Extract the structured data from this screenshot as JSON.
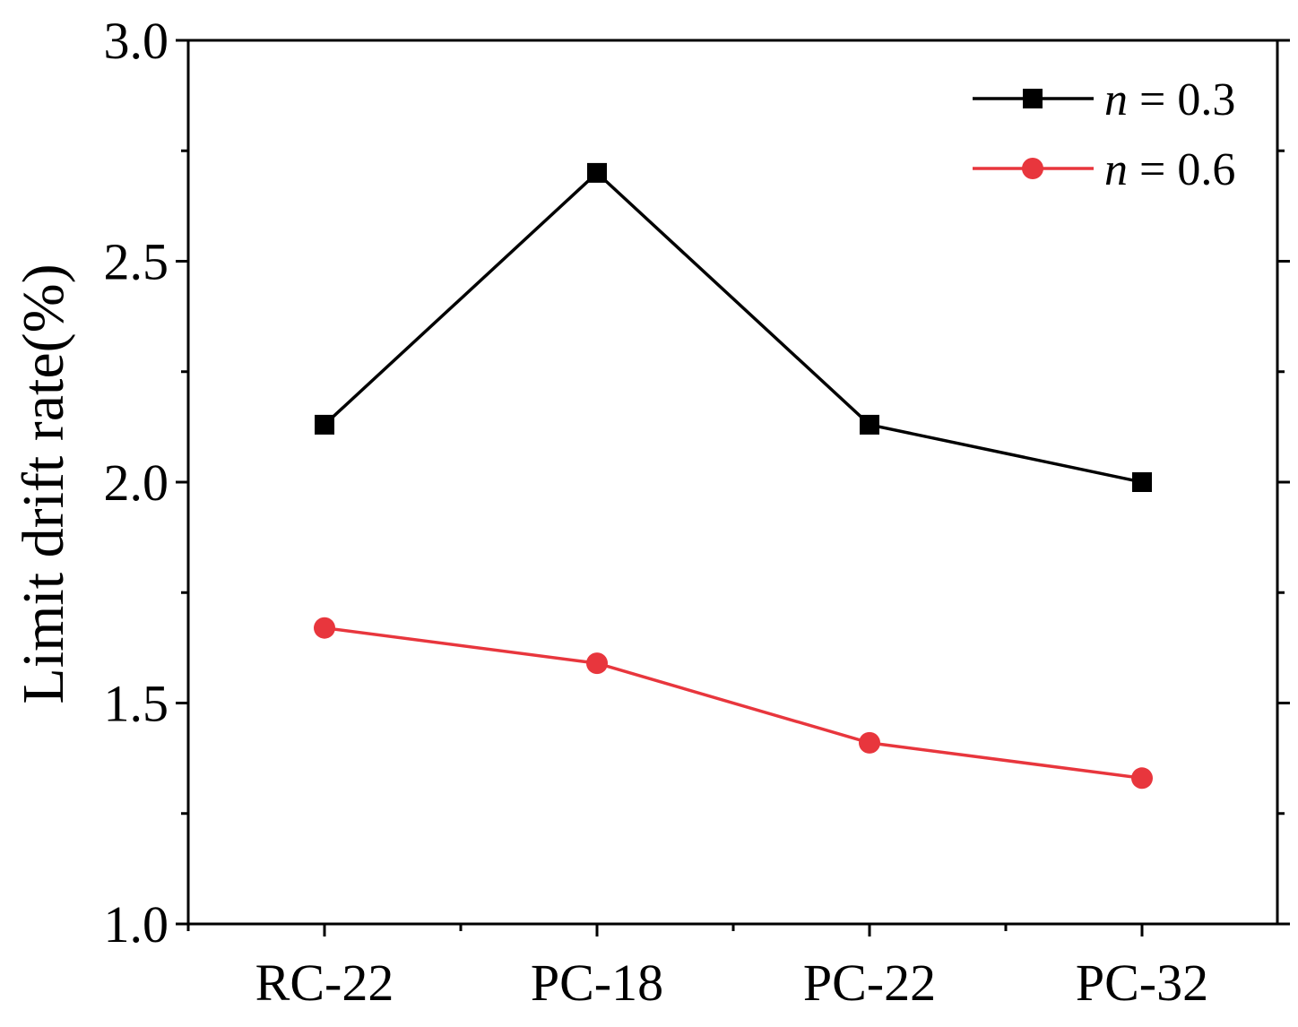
{
  "chart_data": {
    "type": "line",
    "title": "",
    "xlabel": "",
    "ylabel": "Limit drift rate(%)",
    "categories": [
      "RC-22",
      "PC-18",
      "PC-22",
      "PC-32"
    ],
    "ylim": [
      1.0,
      3.0
    ],
    "yticks": [
      1.0,
      1.5,
      2.0,
      2.5,
      3.0
    ],
    "ytick_labels": [
      "1.0",
      "1.5",
      "2.0",
      "2.5",
      "3.0"
    ],
    "grid": false,
    "legend_position": "top-right",
    "series": [
      {
        "name": "n = 0.3",
        "var": "n",
        "rest": " = 0.3",
        "color": "#000000",
        "marker": "square",
        "values": [
          2.13,
          2.7,
          2.13,
          2.0
        ]
      },
      {
        "name": "n = 0.6",
        "var": "n",
        "rest": " = 0.6",
        "color": "#e8363d",
        "marker": "circle",
        "values": [
          1.67,
          1.59,
          1.41,
          1.33
        ]
      }
    ]
  }
}
